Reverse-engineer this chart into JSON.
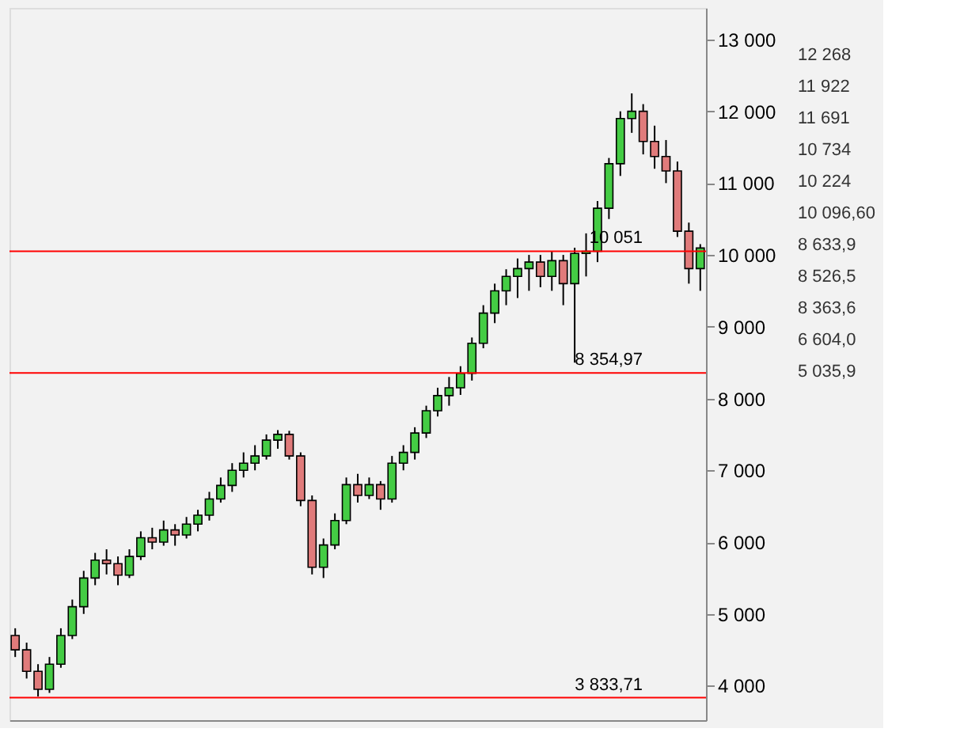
{
  "chart_data": {
    "type": "candlestick",
    "categories": [
      null,
      null,
      null,
      null,
      null,
      null,
      null,
      null,
      null,
      null,
      null,
      null,
      null,
      null,
      null,
      null,
      null,
      null,
      null,
      null,
      null,
      null,
      null,
      null,
      null,
      null,
      null,
      null,
      null,
      null,
      null,
      null,
      null,
      null,
      null,
      null,
      null,
      null,
      null,
      null,
      null,
      null,
      null,
      null,
      null,
      null,
      null,
      null,
      null,
      null,
      null,
      null,
      null,
      null,
      null,
      null,
      null,
      null,
      null,
      null,
      null
    ],
    "ohlc": [
      [
        4700,
        4800,
        4400,
        4500
      ],
      [
        4500,
        4600,
        4100,
        4200
      ],
      [
        4200,
        4300,
        3850,
        3950
      ],
      [
        3950,
        4400,
        3900,
        4300
      ],
      [
        4300,
        4800,
        4250,
        4700
      ],
      [
        4700,
        5200,
        4650,
        5100
      ],
      [
        5100,
        5600,
        5000,
        5500
      ],
      [
        5500,
        5850,
        5400,
        5750
      ],
      [
        5750,
        5900,
        5550,
        5700
      ],
      [
        5700,
        5800,
        5400,
        5540
      ],
      [
        5540,
        5900,
        5500,
        5800
      ],
      [
        5800,
        6150,
        5750,
        6060
      ],
      [
        6060,
        6200,
        5900,
        6000
      ],
      [
        6000,
        6300,
        5950,
        6170
      ],
      [
        6170,
        6250,
        5950,
        6100
      ],
      [
        6100,
        6350,
        6050,
        6250
      ],
      [
        6250,
        6450,
        6150,
        6375
      ],
      [
        6375,
        6700,
        6300,
        6600
      ],
      [
        6600,
        6900,
        6550,
        6790
      ],
      [
        6790,
        7100,
        6700,
        7000
      ],
      [
        7000,
        7250,
        6900,
        7100
      ],
      [
        7100,
        7350,
        7000,
        7200
      ],
      [
        7200,
        7500,
        7150,
        7420
      ],
      [
        7420,
        7560,
        7300,
        7500
      ],
      [
        7500,
        7550,
        7150,
        7200
      ],
      [
        7200,
        7250,
        6500,
        6580
      ],
      [
        6580,
        6650,
        5550,
        5650
      ],
      [
        5650,
        6050,
        5500,
        5960
      ],
      [
        5960,
        6400,
        5900,
        6300
      ],
      [
        6300,
        6900,
        6250,
        6800
      ],
      [
        6800,
        6950,
        6550,
        6650
      ],
      [
        6650,
        6900,
        6600,
        6800
      ],
      [
        6800,
        6850,
        6450,
        6600
      ],
      [
        6600,
        7200,
        6550,
        7100
      ],
      [
        7100,
        7350,
        7000,
        7250
      ],
      [
        7250,
        7600,
        7150,
        7520
      ],
      [
        7520,
        7900,
        7450,
        7830
      ],
      [
        7830,
        8150,
        7750,
        8040
      ],
      [
        8040,
        8300,
        7900,
        8150
      ],
      [
        8150,
        8450,
        8050,
        8350
      ],
      [
        8350,
        8850,
        8250,
        8770
      ],
      [
        8770,
        9300,
        8700,
        9190
      ],
      [
        9190,
        9600,
        9050,
        9500
      ],
      [
        9500,
        9800,
        9300,
        9700
      ],
      [
        9700,
        9950,
        9400,
        9810
      ],
      [
        9810,
        10000,
        9500,
        9900
      ],
      [
        9900,
        10000,
        9550,
        9700
      ],
      [
        9700,
        10050,
        9500,
        9920
      ],
      [
        9920,
        10000,
        9300,
        9600
      ],
      [
        9600,
        10100,
        8500,
        10020
      ],
      [
        10020,
        10300,
        9700,
        10050
      ],
      [
        10050,
        10750,
        9900,
        10650
      ],
      [
        10650,
        11350,
        10500,
        11270
      ],
      [
        11270,
        12000,
        11100,
        11900
      ],
      [
        11900,
        12250,
        11700,
        12000
      ],
      [
        12000,
        12100,
        11400,
        11580
      ],
      [
        11580,
        11800,
        11200,
        11370
      ],
      [
        11370,
        11600,
        11000,
        11170
      ],
      [
        11170,
        11300,
        10250,
        10330
      ],
      [
        10330,
        10450,
        9600,
        9810
      ],
      [
        9810,
        10150,
        9500,
        10096
      ]
    ],
    "ylim": [
      3520,
      13440
    ],
    "yticks": [
      {
        "value": 4000,
        "label": "4 000"
      },
      {
        "value": 5000,
        "label": "5 000"
      },
      {
        "value": 6000,
        "label": "6 000"
      },
      {
        "value": 7000,
        "label": "7 000"
      },
      {
        "value": 8000,
        "label": "8 000"
      },
      {
        "value": 9000,
        "label": "9 000"
      },
      {
        "value": 10000,
        "label": "10 000"
      },
      {
        "value": 11000,
        "label": "11 000"
      },
      {
        "value": 12000,
        "label": "12 000"
      },
      {
        "value": 13000,
        "label": "13 000"
      }
    ],
    "tick_labels": "y",
    "grid": false,
    "ref_lines": [
      {
        "axis": "y",
        "value": 10051,
        "label": "10 051",
        "color": "#ff0000"
      },
      {
        "axis": "y",
        "value": 8354.97,
        "label": "8 354,97",
        "color": "#ff0000"
      },
      {
        "axis": "y",
        "value": 3833.71,
        "label": "3 833,71",
        "color": "#ff0000"
      }
    ],
    "annotations": [
      "12 268",
      "11 922",
      "11 691",
      "10 734",
      "10 224",
      "10 096,60",
      "8 633,9",
      "8 526,5",
      "8 363,6",
      "6 604,0",
      "5 035,9"
    ]
  }
}
